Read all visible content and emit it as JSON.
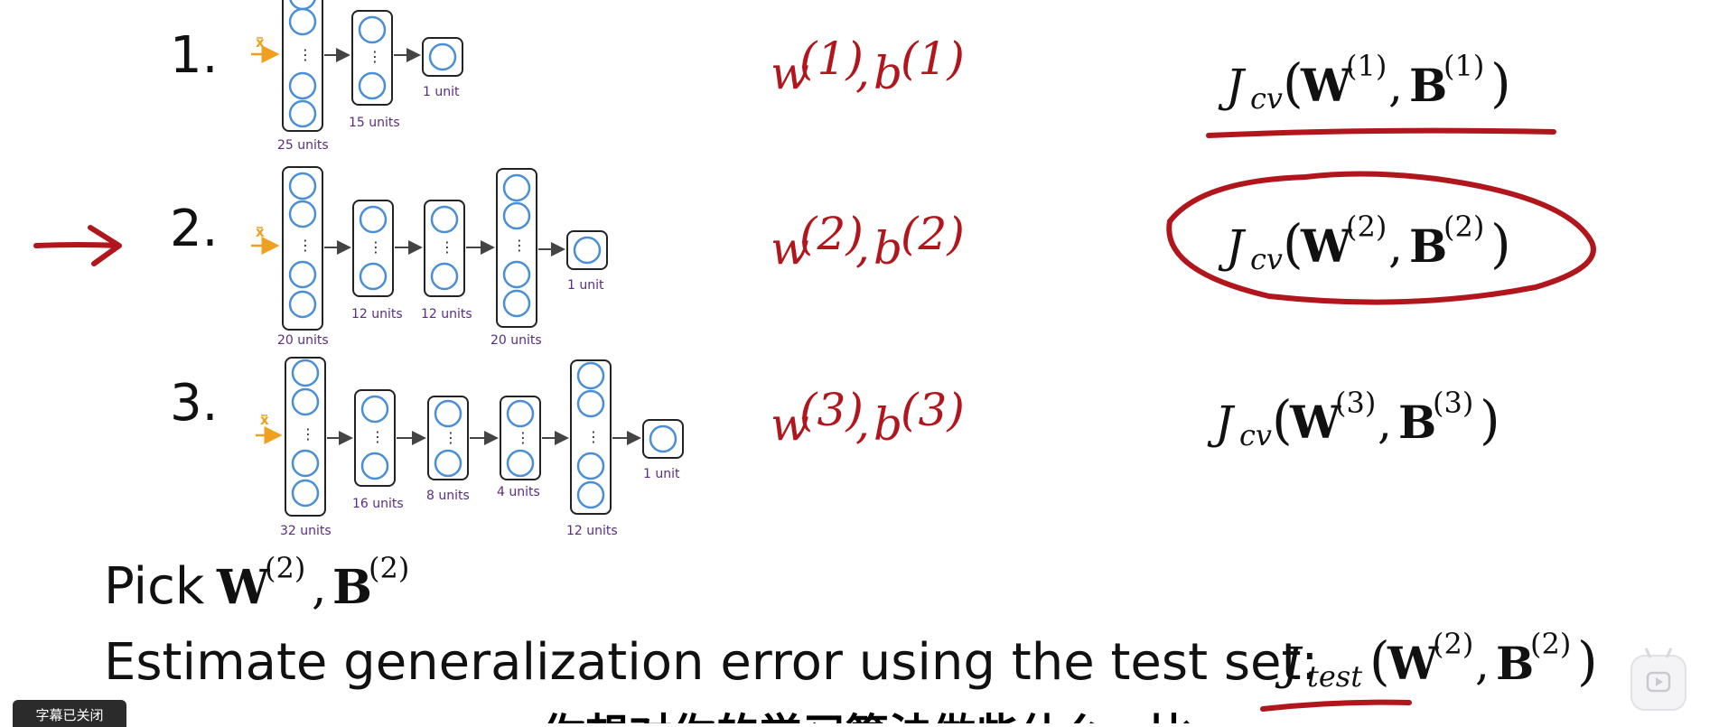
{
  "models": [
    {
      "index": "1.",
      "input_label": "x",
      "layers": [
        {
          "label": "25 units"
        },
        {
          "label": "15 units"
        },
        {
          "label": "1 unit"
        }
      ],
      "params": {
        "w": "w",
        "b": "b",
        "sup": "(1)"
      },
      "jcv": {
        "J": "J",
        "sub": "cv",
        "W": "W",
        "B": "B",
        "sup": "(1)"
      }
    },
    {
      "index": "2.",
      "input_label": "x",
      "layers": [
        {
          "label": "20 units"
        },
        {
          "label": "12 units"
        },
        {
          "label": "12 units"
        },
        {
          "label": "20 units"
        },
        {
          "label": "1 unit"
        }
      ],
      "params": {
        "w": "w",
        "b": "b",
        "sup": "(2)"
      },
      "jcv": {
        "J": "J",
        "sub": "cv",
        "W": "W",
        "B": "B",
        "sup": "(2)"
      }
    },
    {
      "index": "3.",
      "input_label": "x",
      "layers": [
        {
          "label": "32 units"
        },
        {
          "label": "16 units"
        },
        {
          "label": "8 units"
        },
        {
          "label": "4 units"
        },
        {
          "label": "12 units"
        },
        {
          "label": "1 unit"
        }
      ],
      "params": {
        "w": "w",
        "b": "b",
        "sup": "(3)"
      },
      "jcv": {
        "J": "J",
        "sub": "cv",
        "W": "W",
        "B": "B",
        "sup": "(3)"
      }
    }
  ],
  "pick": {
    "text": "Pick",
    "W": "W",
    "B": "B",
    "sup": "(2)"
  },
  "estimate": {
    "text": "Estimate generalization error using the test set:",
    "J": "J",
    "sub": "test",
    "W": "W",
    "B": "B",
    "sup": "(2)"
  },
  "caption_toggle": "字幕已关闭",
  "subtitle": "你想对你的学习算法做些什么，比",
  "icons": {
    "play": "play-icon",
    "arrow": "red-arrow-icon"
  },
  "colors": {
    "ink": "#b0161c",
    "neuron": "#4a8fd6",
    "unit_label": "#5a2d82",
    "input_arrow": "#f0a020"
  }
}
